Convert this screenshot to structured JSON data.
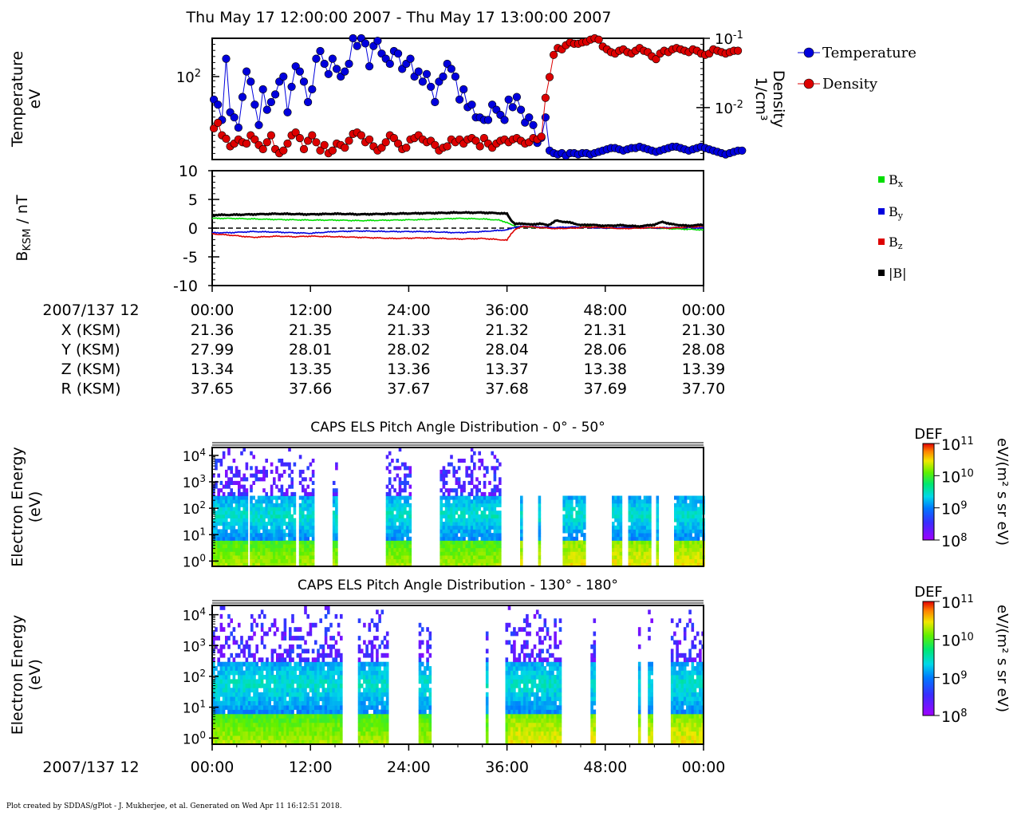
{
  "title": "Thu May 17 12:00:00 2007 - Thu May 17 13:00:00 2007",
  "footer": "Plot created by SDDAS/gPlot - J. Mukherjee, et al.  Generated on Wed Apr 11 16:12:51 2018.",
  "colors": {
    "temperature": "#0000dd",
    "density": "#dd0000",
    "bx": "#00dd00",
    "by": "#0000dd",
    "bz": "#dd0000",
    "btot": "#000000"
  },
  "time_axis": {
    "ticks": [
      "00:00",
      "12:00",
      "24:00",
      "36:00",
      "48:00",
      "00:00"
    ],
    "tick_minutes": [
      0,
      12,
      24,
      36,
      48,
      60
    ],
    "range_minutes": [
      0,
      60
    ]
  },
  "ephemeris": {
    "label": "2007/137 12",
    "rows": [
      {
        "name": "X (KSM)",
        "values": [
          "21.36",
          "21.35",
          "21.33",
          "21.32",
          "21.31",
          "21.30"
        ]
      },
      {
        "name": "Y (KSM)",
        "values": [
          "27.99",
          "28.01",
          "28.02",
          "28.04",
          "28.06",
          "28.08"
        ]
      },
      {
        "name": "Z (KSM)",
        "values": [
          "13.34",
          "13.35",
          "13.36",
          "13.37",
          "13.38",
          "13.39"
        ]
      },
      {
        "name": "R (KSM)",
        "values": [
          "37.65",
          "37.66",
          "37.67",
          "37.68",
          "37.69",
          "37.70"
        ]
      }
    ]
  },
  "bottom_axis_label": "2007/137 12",
  "chart_data": [
    {
      "type": "line",
      "name": "moments",
      "ylabel_left": [
        "Temperature",
        "eV"
      ],
      "ylabel_right": [
        "Density",
        "1/cm³"
      ],
      "left_tick_labels": [
        {
          "base": "10",
          "exp": "2",
          "value": 100
        }
      ],
      "right_tick_labels": [
        {
          "base": "10",
          "exp": "-1",
          "value": 0.1
        },
        {
          "base": "10",
          "exp": "-2",
          "value": 0.01
        }
      ],
      "ylim_left_log10": [
        1.35,
        2.3
      ],
      "ylim_right_log10": [
        -2.75,
        -1.0
      ],
      "legend": [
        "Temperature",
        "Density"
      ],
      "series": [
        {
          "name": "Temperature",
          "t_start": 0.2,
          "t_step": 0.5,
          "log10_values": [
            1.82,
            1.78,
            1.66,
            2.14,
            1.72,
            1.68,
            1.6,
            1.84,
            2.04,
            1.96,
            1.78,
            1.62,
            1.9,
            1.74,
            1.8,
            1.86,
            1.96,
            2.0,
            1.72,
            1.92,
            2.08,
            2.04,
            1.96,
            1.8,
            1.9,
            2.14,
            2.2,
            2.1,
            2.02,
            2.14,
            2.06,
            2.0,
            2.04,
            2.1,
            2.3,
            2.24,
            2.3,
            2.26,
            2.08,
            2.24,
            2.28,
            2.18,
            2.14,
            2.1,
            2.2,
            2.18,
            2.06,
            2.1,
            2.14,
            2.0,
            2.04,
            1.96,
            2.02,
            1.92,
            1.8,
            1.96,
            2.0,
            2.1,
            2.06,
            2.0,
            1.82,
            1.9,
            1.76,
            1.78,
            1.68,
            1.68,
            1.66,
            1.66,
            1.78,
            1.74,
            1.7,
            1.66,
            1.82,
            1.76,
            1.84,
            1.74,
            1.64,
            1.68,
            1.62,
            1.48,
            1.52,
            1.68,
            1.42,
            1.4,
            1.39,
            1.4,
            1.38,
            1.4,
            1.4,
            1.39,
            1.4,
            1.4,
            1.39,
            1.4,
            1.41,
            1.42,
            1.43,
            1.44,
            1.44,
            1.43,
            1.42,
            1.43,
            1.44,
            1.44,
            1.45,
            1.44,
            1.43,
            1.42,
            1.41,
            1.42,
            1.43,
            1.44,
            1.45,
            1.45,
            1.44,
            1.43,
            1.42,
            1.43,
            1.44,
            1.45,
            1.44,
            1.43,
            1.42,
            1.41,
            1.4,
            1.39,
            1.4,
            1.41,
            1.42,
            1.42
          ]
        },
        {
          "name": "Density",
          "t_start": 0.2,
          "t_step": 0.5,
          "log10_values": [
            -2.3,
            -2.22,
            -2.4,
            -2.45,
            -2.56,
            -2.52,
            -2.46,
            -2.5,
            -2.52,
            -2.4,
            -2.46,
            -2.54,
            -2.6,
            -2.5,
            -2.4,
            -2.6,
            -2.66,
            -2.62,
            -2.52,
            -2.4,
            -2.36,
            -2.44,
            -2.6,
            -2.48,
            -2.4,
            -2.5,
            -2.62,
            -2.54,
            -2.66,
            -2.62,
            -2.52,
            -2.54,
            -2.58,
            -2.48,
            -2.38,
            -2.36,
            -2.4,
            -2.5,
            -2.46,
            -2.56,
            -2.62,
            -2.58,
            -2.5,
            -2.4,
            -2.44,
            -2.52,
            -2.6,
            -2.58,
            -2.46,
            -2.44,
            -2.4,
            -2.46,
            -2.5,
            -2.48,
            -2.54,
            -2.62,
            -2.58,
            -2.56,
            -2.46,
            -2.5,
            -2.46,
            -2.52,
            -2.46,
            -2.44,
            -2.48,
            -2.56,
            -2.44,
            -2.52,
            -2.58,
            -2.52,
            -2.48,
            -2.46,
            -2.5,
            -2.46,
            -2.44,
            -2.48,
            -2.52,
            -2.5,
            -2.44,
            -2.46,
            -2.42,
            -1.86,
            -1.56,
            -1.24,
            -1.14,
            -1.16,
            -1.1,
            -1.06,
            -1.08,
            -1.08,
            -1.06,
            -1.05,
            -1.02,
            -1.0,
            -1.02,
            -1.12,
            -1.16,
            -1.2,
            -1.22,
            -1.18,
            -1.16,
            -1.2,
            -1.22,
            -1.18,
            -1.14,
            -1.18,
            -1.2,
            -1.26,
            -1.3,
            -1.22,
            -1.18,
            -1.2,
            -1.16,
            -1.14,
            -1.16,
            -1.18,
            -1.2,
            -1.16,
            -1.18,
            -1.22,
            -1.24,
            -1.22,
            -1.16,
            -1.18,
            -1.2,
            -1.22,
            -1.2,
            -1.18,
            -1.18
          ]
        }
      ]
    },
    {
      "type": "line",
      "name": "magnetic-field",
      "ylabel": "B KSM / nT",
      "ylabel_main": "B",
      "ylabel_sub": "KSM",
      "ylabel_rest": " / nT",
      "ylim": [
        -10,
        10
      ],
      "yticks": [
        10,
        5,
        0,
        -5,
        -10
      ],
      "ytick_labels": [
        "10",
        "5",
        "0",
        "-5",
        "-10"
      ],
      "zero_line": "dashed",
      "legend": [
        "Bx",
        "By",
        "Bz",
        "|B|"
      ],
      "legend_parts": [
        {
          "main": "B",
          "sub": "x"
        },
        {
          "main": "B",
          "sub": "y"
        },
        {
          "main": "B",
          "sub": "z"
        },
        {
          "main": "|B|",
          "sub": ""
        }
      ],
      "series": [
        {
          "name": "Bx",
          "t": [
            0,
            2,
            5,
            8,
            12,
            15,
            18,
            22,
            26,
            30,
            33,
            35,
            36,
            36.5,
            37,
            38,
            40,
            42,
            44,
            46,
            48,
            50,
            52,
            54,
            56,
            58,
            60
          ],
          "values": [
            1.7,
            1.7,
            1.6,
            1.5,
            1.4,
            1.4,
            1.3,
            1.4,
            1.5,
            1.7,
            1.6,
            1.4,
            1.0,
            0.6,
            0.3,
            0.2,
            0.1,
            0.0,
            0.1,
            0.2,
            0.0,
            0.0,
            0.1,
            0.0,
            -0.1,
            -0.2,
            -0.3
          ]
        },
        {
          "name": "By",
          "t": [
            0,
            2,
            5,
            8,
            12,
            15,
            18,
            22,
            26,
            30,
            33,
            35,
            36,
            36.5,
            37,
            38,
            40,
            42,
            44,
            46,
            48,
            50,
            52,
            54,
            56,
            58,
            60
          ],
          "values": [
            -0.8,
            -0.8,
            -0.6,
            -0.7,
            -0.9,
            -0.6,
            -0.5,
            -0.6,
            -0.6,
            -0.8,
            -0.6,
            -0.4,
            -0.3,
            -0.1,
            0.2,
            0.3,
            0.2,
            0.1,
            0.2,
            0.1,
            0.0,
            0.1,
            0.2,
            0.0,
            0.1,
            0.1,
            0.0
          ]
        },
        {
          "name": "Bz",
          "t": [
            0,
            2,
            5,
            8,
            10,
            12,
            15,
            18,
            22,
            26,
            30,
            33,
            35,
            36,
            36.5,
            37,
            38,
            40,
            42,
            44,
            46,
            48,
            50,
            52,
            54,
            56,
            58,
            60
          ],
          "values": [
            -1.0,
            -1.2,
            -1.6,
            -1.4,
            -1.5,
            -1.4,
            -1.5,
            -1.6,
            -1.8,
            -1.7,
            -1.9,
            -1.8,
            -2.0,
            -2.1,
            -1.0,
            -0.2,
            0.3,
            0.1,
            -0.1,
            0.0,
            0.2,
            0.1,
            -0.1,
            0.0,
            0.1,
            0.0,
            0.2,
            0.3
          ]
        },
        {
          "name": "|B|",
          "t": [
            0,
            2,
            5,
            8,
            12,
            15,
            18,
            22,
            26,
            30,
            33,
            35,
            36,
            36.5,
            37,
            38,
            39,
            40,
            41,
            42,
            43,
            44,
            45,
            46,
            48,
            50,
            52,
            54,
            55,
            56,
            58,
            60
          ],
          "values": [
            2.3,
            2.3,
            2.4,
            2.5,
            2.4,
            2.5,
            2.4,
            2.5,
            2.6,
            2.7,
            2.7,
            2.6,
            2.5,
            1.4,
            0.7,
            0.8,
            0.6,
            0.8,
            0.5,
            1.3,
            1.1,
            0.9,
            0.5,
            0.6,
            0.4,
            0.5,
            0.3,
            0.6,
            1.1,
            0.7,
            0.4,
            0.6
          ]
        }
      ]
    },
    {
      "type": "heatmap",
      "name": "spectrogram-0-50",
      "title": "CAPS ELS Pitch Angle Distribution - 0° - 50°",
      "ylabel": [
        "Electron Energy",
        "(eV)"
      ],
      "yticks": [
        {
          "base": "10",
          "exp": "4"
        },
        {
          "base": "10",
          "exp": "3"
        },
        {
          "base": "10",
          "exp": "2"
        },
        {
          "base": "10",
          "exp": "1"
        },
        {
          "base": "10",
          "exp": "0"
        }
      ],
      "ylim_log10": [
        -0.2,
        4.3
      ],
      "colorbar": {
        "label": "DEF",
        "units": "eV/(m² s sr eV)",
        "ticks": [
          {
            "base": "10",
            "exp": "11"
          },
          {
            "base": "10",
            "exp": "10"
          },
          {
            "base": "10",
            "exp": "9"
          },
          {
            "base": "10",
            "exp": "8"
          }
        ],
        "range_log10": [
          8,
          11
        ]
      },
      "segments": [
        [
          0,
          4.2
        ],
        [
          4.6,
          10.2
        ],
        [
          10.6,
          12.4
        ],
        [
          14.7,
          15.3
        ],
        [
          21.2,
          24.2
        ],
        [
          27.8,
          35.2
        ],
        [
          37.6,
          37.9
        ],
        [
          39.8,
          40
        ],
        [
          42.8,
          45.5
        ],
        [
          48.8,
          50
        ],
        [
          50.8,
          53.5
        ],
        [
          54.2,
          54.5
        ],
        [
          56.4,
          60
        ]
      ]
    },
    {
      "type": "heatmap",
      "name": "spectrogram-130-180",
      "title": "CAPS ELS Pitch Angle Distribution - 130° - 180°",
      "ylabel": [
        "Electron Energy",
        "(eV)"
      ],
      "yticks": [
        {
          "base": "10",
          "exp": "4"
        },
        {
          "base": "10",
          "exp": "3"
        },
        {
          "base": "10",
          "exp": "2"
        },
        {
          "base": "10",
          "exp": "1"
        },
        {
          "base": "10",
          "exp": "0"
        }
      ],
      "ylim_log10": [
        -0.2,
        4.3
      ],
      "colorbar": {
        "label": "DEF",
        "units": "eV/(m² s sr eV)",
        "ticks": [
          {
            "base": "10",
            "exp": "11"
          },
          {
            "base": "10",
            "exp": "10"
          },
          {
            "base": "10",
            "exp": "9"
          },
          {
            "base": "10",
            "exp": "8"
          }
        ],
        "range_log10": [
          8,
          11
        ]
      },
      "segments": [
        [
          0,
          15.8
        ],
        [
          17.8,
          21.4
        ],
        [
          25.2,
          26.6
        ],
        [
          33.4,
          33.7
        ],
        [
          35.8,
          42.6
        ],
        [
          46.2,
          46.6
        ],
        [
          52.0,
          52.3
        ],
        [
          53.2,
          53.6
        ],
        [
          56.0,
          60
        ]
      ]
    }
  ]
}
